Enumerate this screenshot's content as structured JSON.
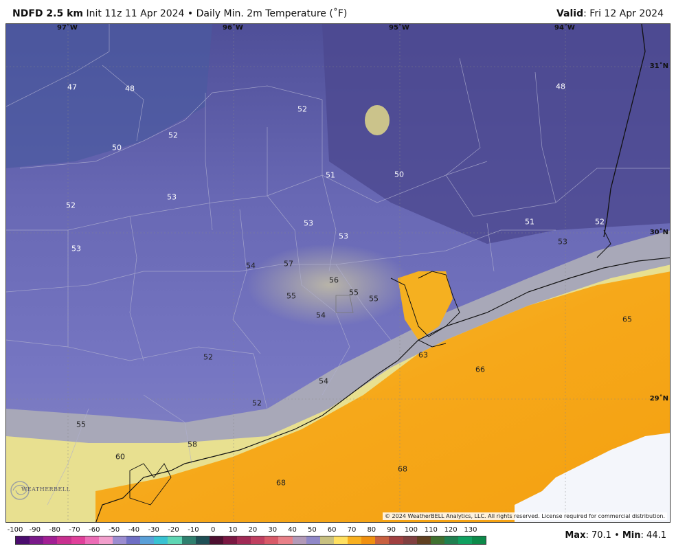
{
  "header": {
    "product": "NDFD 2.5 km",
    "init": "Init 11z 11 Apr 2024",
    "separator": "•",
    "field": "Daily Min. 2m Temperature (˚F)",
    "valid_label": "Valid",
    "valid_date": ": Fri 12 Apr 2024"
  },
  "map": {
    "longitudes": [
      "97˚W",
      "96˚W",
      "95˚W",
      "94˚W"
    ],
    "latitudes": [
      "31˚N",
      "30˚N",
      "29˚N"
    ],
    "values": [
      "47",
      "48",
      "52",
      "52",
      "48",
      "50",
      "51",
      "50",
      "53",
      "52",
      "53",
      "53",
      "51",
      "52",
      "53",
      "53",
      "54",
      "57",
      "56",
      "55",
      "55",
      "54",
      "55",
      "65",
      "63",
      "66",
      "52",
      "54",
      "52",
      "55",
      "58",
      "60",
      "68",
      "68"
    ],
    "copyright": "© 2024 WeatherBELL Analytics, LLC. All rights reserved. License required for commercial distribution.",
    "logo": "WEATHERBELL"
  },
  "colorbar": {
    "labels": [
      "-100",
      "-90",
      "-80",
      "-70",
      "-60",
      "-50",
      "-40",
      "-30",
      "-20",
      "-10",
      "0",
      "10",
      "20",
      "30",
      "40",
      "50",
      "60",
      "70",
      "80",
      "90",
      "100",
      "110",
      "120",
      "130"
    ],
    "colors": [
      "#4b0d6e",
      "#7a1a8a",
      "#a21f94",
      "#c8308f",
      "#e0409a",
      "#ec6cb6",
      "#f29fcc",
      "#9c8dd0",
      "#6f6fc4",
      "#5aa0d8",
      "#39c2d2",
      "#5fd6b4",
      "#2f7f6e",
      "#1f4f55",
      "#4d1030",
      "#7a1842",
      "#a02a55",
      "#c04060",
      "#d85a68",
      "#e88088",
      "#b39ab8",
      "#9088c8",
      "#c8c080",
      "#ffe060",
      "#f8b020",
      "#f09010",
      "#c86040",
      "#a04040",
      "#804040",
      "#604020",
      "#407030",
      "#208050",
      "#10a060",
      "#0d8a4a"
    ]
  },
  "stats": {
    "max_label": "Max",
    "max_value": ": 70.1",
    "sep": " • ",
    "min_label": "Min",
    "min_value": ": 44.1"
  }
}
